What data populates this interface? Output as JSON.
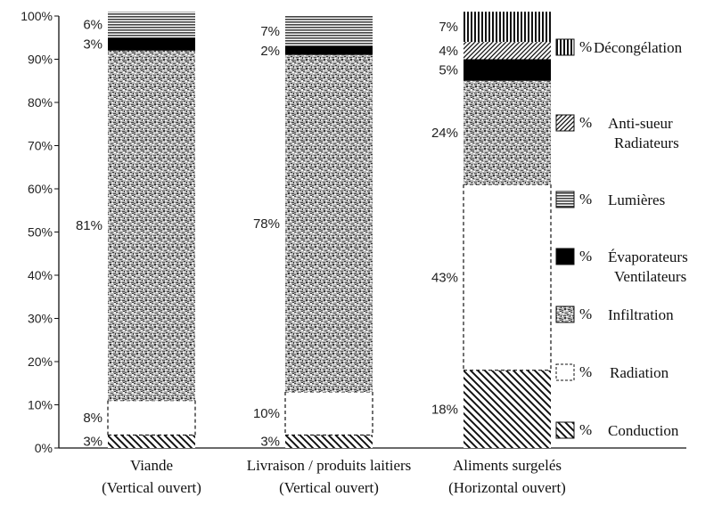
{
  "chart_data": {
    "type": "bar",
    "stacked": true,
    "title": "",
    "xlabel": "",
    "ylabel": "",
    "ylim": [
      0,
      100
    ],
    "y_ticks": [
      "0%",
      "10%",
      "20%",
      "30%",
      "40%",
      "50%",
      "60%",
      "70%",
      "80%",
      "90%",
      "100%"
    ],
    "categories": [
      [
        "Viande",
        "(Vertical ouvert)"
      ],
      [
        "Livraison / produits laitiers",
        "(Vertical ouvert)"
      ],
      [
        "Aliments surgelés",
        "(Horizontal ouvert)"
      ]
    ],
    "series": [
      {
        "key": "conduction",
        "name": "% Conduction",
        "legend_lines": [
          "Conduction"
        ],
        "values": [
          3,
          3,
          18
        ],
        "labels": [
          "3%",
          "3%",
          "18%"
        ]
      },
      {
        "key": "radiation",
        "name": "% Radiation",
        "legend_lines": [
          "Radiation"
        ],
        "values": [
          8,
          10,
          43
        ],
        "labels": [
          "8%",
          "10%",
          "43%"
        ]
      },
      {
        "key": "infiltration",
        "name": "% Infiltration",
        "legend_lines": [
          "Infiltration"
        ],
        "values": [
          81,
          78,
          24
        ],
        "labels": [
          "81%",
          "78%",
          "24%"
        ]
      },
      {
        "key": "evaporateurs",
        "name": "% Évaporateurs Ventilateurs",
        "legend_lines": [
          "Évaporateurs",
          "Ventilateurs"
        ],
        "values": [
          3,
          2,
          5
        ],
        "labels": [
          "3%",
          "2%",
          "5%"
        ]
      },
      {
        "key": "lumieres",
        "name": "% Lumières",
        "legend_lines": [
          "Lumières"
        ],
        "values": [
          6,
          7,
          0
        ],
        "labels": [
          "6%",
          "7%",
          ""
        ]
      },
      {
        "key": "antisueur",
        "name": "% Anti-sueur Radiateurs",
        "legend_lines": [
          "Anti-sueur",
          "Radiateurs"
        ],
        "values": [
          0,
          0,
          4
        ],
        "labels": [
          "",
          "",
          "4%"
        ]
      },
      {
        "key": "decongelation",
        "name": "% Décongélation",
        "legend_lines": [
          "Décongélation"
        ],
        "values": [
          0,
          0,
          7
        ],
        "labels": [
          "",
          "",
          "7%"
        ]
      }
    ],
    "legend_prefix": "%",
    "legend_order": [
      "decongelation",
      "antisueur",
      "lumieres",
      "evaporateurs",
      "infiltration",
      "radiation",
      "conduction"
    ],
    "legend_position": "right",
    "grid": false
  }
}
